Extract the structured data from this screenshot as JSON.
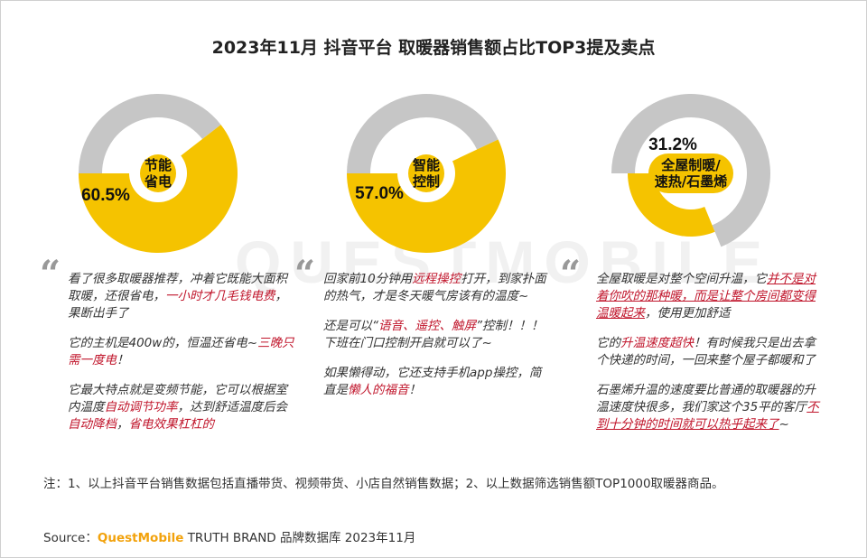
{
  "title": "2023年11月 抖音平台 取暖器销售额占比TOP3提及卖点",
  "watermark": "QUESTMOBILE",
  "colors": {
    "primary": "#F5C300",
    "rest": "#C6C6C6",
    "highlight": "#C0152B"
  },
  "chart_data": {
    "type": "pie",
    "title": "2023年11月 抖音平台 取暖器销售额占比TOP3提及卖点",
    "items": [
      {
        "label_lines": [
          "节能",
          "省电"
        ],
        "value": 60.5,
        "value_label": "60.5%"
      },
      {
        "label_lines": [
          "智能",
          "控制"
        ],
        "value": 57.0,
        "value_label": "57.0%"
      },
      {
        "label_lines": [
          "全屋制暖/",
          "速热/石墨烯"
        ],
        "value": 31.2,
        "value_label": "31.2%"
      }
    ]
  },
  "quotes": [
    {
      "mark": "“",
      "paragraphs": [
        [
          {
            "t": "看了很多取暖器推荐，冲着它既能大面积取暖，还很省电，"
          },
          {
            "t": "一小时才几毛钱电费",
            "hl": true
          },
          {
            "t": "，果断出手了"
          }
        ],
        [
          {
            "t": "它的主机是400w的，恒温还省电~"
          },
          {
            "t": "三晚只需一度电",
            "hl": true
          },
          {
            "t": "！"
          }
        ],
        [
          {
            "t": "它最大特点就是变频节能，它可以根据室内温度"
          },
          {
            "t": "自动调节功率",
            "hl": true
          },
          {
            "t": "，达到舒适温度后会"
          },
          {
            "t": "自动降档",
            "hl": true
          },
          {
            "t": "，"
          },
          {
            "t": "省电效果杠杠的",
            "hl": true
          }
        ]
      ]
    },
    {
      "mark": "“",
      "paragraphs": [
        [
          {
            "t": "回家前10分钟用"
          },
          {
            "t": "远程操控",
            "hl": true
          },
          {
            "t": "打开，到家扑面的热气，才是冬天暖气房该有的温度~"
          }
        ],
        [
          {
            "t": "还是可以“"
          },
          {
            "t": "语音、遥控、触屏",
            "hl": true
          },
          {
            "t": "”控制！！！下班在门口控制开启就可以了~"
          }
        ],
        [
          {
            "t": "如果懒得动，它还支持手机app操控，简直是"
          },
          {
            "t": "懒人的福音",
            "hl": true
          },
          {
            "t": "！"
          }
        ]
      ]
    },
    {
      "mark": "“",
      "paragraphs": [
        [
          {
            "t": "全屋取暖是对整个空间升温，它"
          },
          {
            "t": "并不是对着你吹的那种暖，而是让整个房间都变得温暖起来",
            "hl": true,
            "ul": true
          },
          {
            "t": "，使用更加舒适"
          }
        ],
        [
          {
            "t": "它的"
          },
          {
            "t": "升温速度超快",
            "hl": true
          },
          {
            "t": "！有时候我只是出去拿个快递的时间，一回来整个屋子都暖和了"
          }
        ],
        [
          {
            "t": "石墨烯升温的速度要比普通的取暖器的升温速度快很多，我们家这个35平的客厅"
          },
          {
            "t": "不到十分钟的时间就可以热乎起来了",
            "hl": true,
            "ul": true
          },
          {
            "t": "~"
          }
        ]
      ]
    }
  ],
  "footnote": "注：1、以上抖音平台销售数据包括直播带货、视频带货、小店自然销售数据；2、以上数据筛选销售额TOP1000取暖器商品。",
  "source": {
    "prefix": "Source：",
    "brand": "QuestMobile",
    "suffix": "TRUTH BRAND 品牌数据库 2023年11月"
  }
}
